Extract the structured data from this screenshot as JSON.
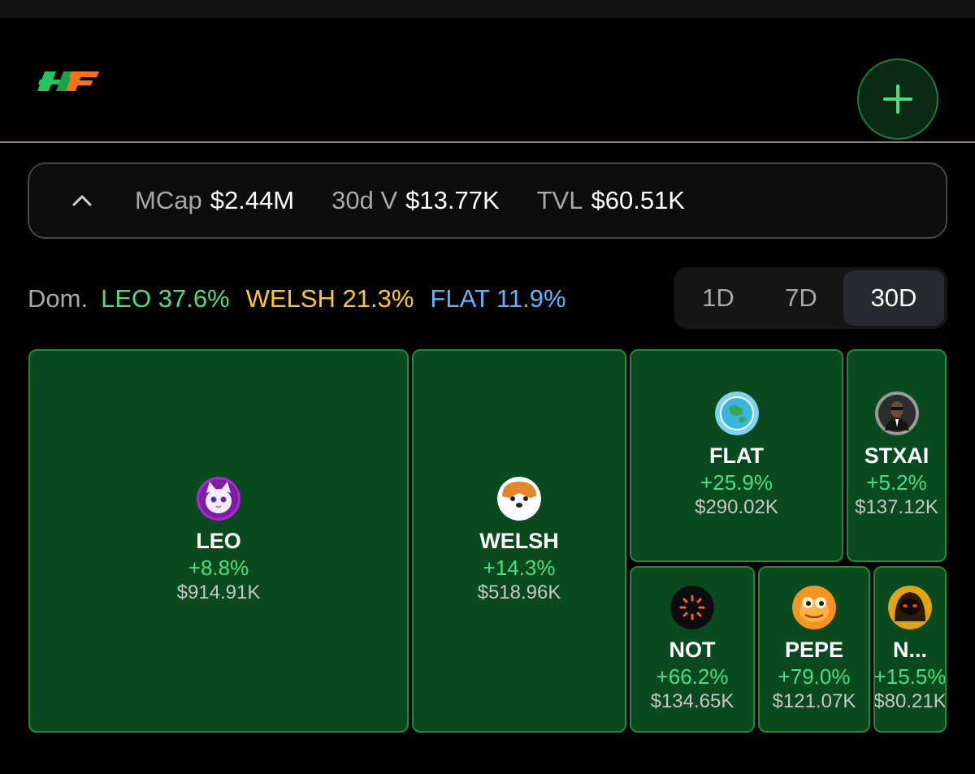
{
  "header": {
    "logo_icon": "flat-logo-icon",
    "add_icon": "plus-icon"
  },
  "stats": [
    {
      "label": "MCap",
      "value": "$2.44M"
    },
    {
      "label": "30d V",
      "value": "$13.77K"
    },
    {
      "label": "TVL",
      "value": "$60.51K"
    }
  ],
  "dominance": {
    "label": "Dom.",
    "items": [
      {
        "text": "LEO 37.6%",
        "color": "#4ade80"
      },
      {
        "text": "WELSH 21.3%",
        "color": "#facc15"
      },
      {
        "text": "FLAT 11.9%",
        "color": "#60b4f8"
      }
    ]
  },
  "time_range": {
    "options": [
      "1D",
      "7D",
      "30D"
    ],
    "selected": "30D"
  },
  "tiles": [
    {
      "symbol": "LEO",
      "change": "+8.8%",
      "volume": "$914.91K",
      "avatar": "cat-avatar-icon"
    },
    {
      "symbol": "WELSH",
      "change": "+14.3%",
      "volume": "$518.96K",
      "avatar": "dog-avatar-icon"
    },
    {
      "symbol": "FLAT",
      "change": "+25.9%",
      "volume": "$290.02K",
      "avatar": "globe-avatar-icon"
    },
    {
      "symbol": "STXAI",
      "change": "+5.2%",
      "volume": "$137.12K",
      "avatar": "agent-avatar-icon"
    },
    {
      "symbol": "NOT",
      "change": "+66.2%",
      "volume": "$134.65K",
      "avatar": "not-avatar-icon"
    },
    {
      "symbol": "PEPE",
      "change": "+79.0%",
      "volume": "$121.07K",
      "avatar": "frog-avatar-icon"
    },
    {
      "symbol": "N...",
      "change": "+15.5%",
      "volume": "$80.21K",
      "avatar": "hood-avatar-icon"
    }
  ]
}
